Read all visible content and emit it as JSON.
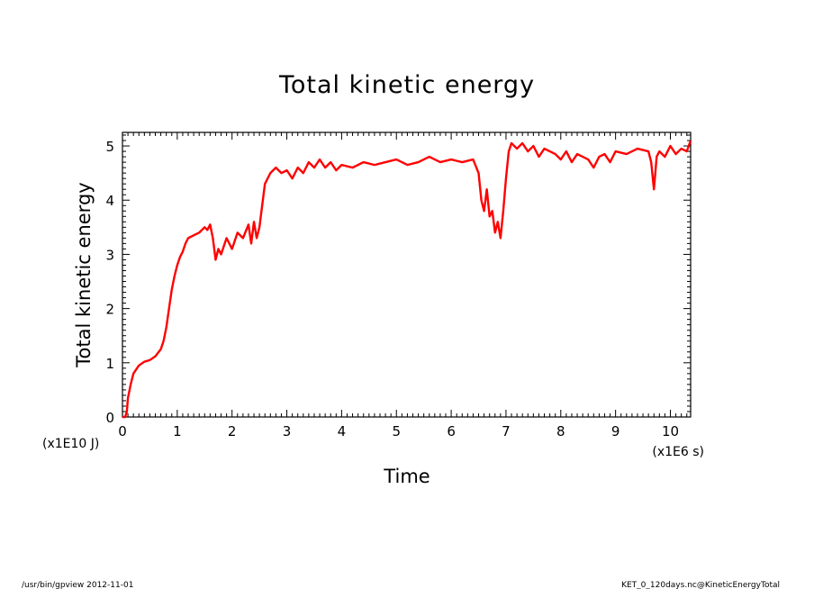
{
  "chart_data": {
    "type": "line",
    "title": "Total kinetic energy",
    "xlabel": "Time",
    "ylabel": "Total kinetic energy",
    "x_unit": "(x1E6 s)",
    "y_unit": "(x1E10 J)",
    "xlim": [
      0,
      10.37
    ],
    "ylim": [
      0,
      5.25
    ],
    "x_ticks": [
      0,
      1,
      2,
      3,
      4,
      5,
      6,
      7,
      8,
      9,
      10
    ],
    "y_ticks": [
      0,
      1,
      2,
      3,
      4,
      5
    ],
    "grid": false,
    "line_color": "#ff0000",
    "series": [
      {
        "x": [
          0.0,
          0.05,
          0.08,
          0.1,
          0.15,
          0.2,
          0.3,
          0.4,
          0.5,
          0.6,
          0.7,
          0.75,
          0.8,
          0.85,
          0.9,
          0.95,
          1.0,
          1.05,
          1.1,
          1.15,
          1.2,
          1.3,
          1.4,
          1.5,
          1.55,
          1.6,
          1.65,
          1.7,
          1.75,
          1.8,
          1.9,
          2.0,
          2.1,
          2.2,
          2.3,
          2.35,
          2.4,
          2.45,
          2.5,
          2.55,
          2.6,
          2.7,
          2.8,
          2.9,
          3.0,
          3.1,
          3.2,
          3.3,
          3.4,
          3.5,
          3.6,
          3.7,
          3.8,
          3.9,
          4.0,
          4.2,
          4.4,
          4.6,
          4.8,
          5.0,
          5.2,
          5.4,
          5.6,
          5.8,
          6.0,
          6.2,
          6.4,
          6.5,
          6.55,
          6.6,
          6.65,
          6.7,
          6.75,
          6.8,
          6.85,
          6.9,
          6.95,
          7.0,
          7.05,
          7.1,
          7.2,
          7.3,
          7.4,
          7.5,
          7.6,
          7.7,
          7.8,
          7.9,
          8.0,
          8.1,
          8.2,
          8.3,
          8.4,
          8.5,
          8.6,
          8.7,
          8.8,
          8.9,
          9.0,
          9.2,
          9.4,
          9.6,
          9.65,
          9.7,
          9.75,
          9.8,
          9.9,
          10.0,
          10.1,
          10.2,
          10.3,
          10.37
        ],
        "y": [
          0.0,
          0.0,
          0.1,
          0.35,
          0.6,
          0.8,
          0.95,
          1.02,
          1.05,
          1.12,
          1.25,
          1.4,
          1.65,
          2.0,
          2.35,
          2.6,
          2.8,
          2.95,
          3.05,
          3.2,
          3.3,
          3.35,
          3.4,
          3.5,
          3.45,
          3.55,
          3.3,
          2.9,
          3.1,
          3.0,
          3.3,
          3.1,
          3.4,
          3.3,
          3.55,
          3.2,
          3.6,
          3.3,
          3.5,
          3.9,
          4.3,
          4.5,
          4.6,
          4.5,
          4.55,
          4.4,
          4.6,
          4.5,
          4.7,
          4.6,
          4.75,
          4.6,
          4.7,
          4.55,
          4.65,
          4.6,
          4.7,
          4.65,
          4.7,
          4.75,
          4.65,
          4.7,
          4.8,
          4.7,
          4.75,
          4.7,
          4.75,
          4.5,
          4.0,
          3.8,
          4.2,
          3.7,
          3.8,
          3.4,
          3.6,
          3.3,
          3.8,
          4.4,
          4.9,
          5.05,
          4.95,
          5.05,
          4.9,
          5.0,
          4.8,
          4.95,
          4.9,
          4.85,
          4.75,
          4.9,
          4.7,
          4.85,
          4.8,
          4.75,
          4.6,
          4.8,
          4.85,
          4.7,
          4.9,
          4.85,
          4.95,
          4.9,
          4.7,
          4.2,
          4.8,
          4.9,
          4.8,
          5.0,
          4.85,
          4.95,
          4.9,
          5.1
        ]
      }
    ]
  },
  "footer": {
    "left": "/usr/bin/gpview  2012-11-01",
    "right": "KET_0_120days.nc@KineticEnergyTotal"
  }
}
